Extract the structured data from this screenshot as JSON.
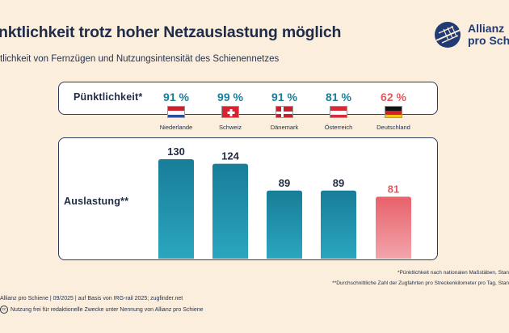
{
  "title": "nktlichkeit trotz hoher Netzauslastung möglich",
  "subtitle": "tlichkeit von Fernzügen und Nutzungsintensität des Schienennetzes",
  "logo": {
    "line1": "Allianz",
    "line2": "pro Schie",
    "icon": "rail-logo-icon"
  },
  "punctuality": {
    "label": "Pünktlichkeit*",
    "items": [
      {
        "country": "Niederlande",
        "value": "91 %",
        "flag": "netherlands-flag-icon"
      },
      {
        "country": "Schweiz",
        "value": "99 %",
        "flag": "switzerland-flag-icon"
      },
      {
        "country": "Dänemark",
        "value": "91 %",
        "flag": "denmark-flag-icon"
      },
      {
        "country": "Österreich",
        "value": "81 %",
        "flag": "austria-flag-icon"
      },
      {
        "country": "Deutschland",
        "value": "62 %",
        "flag": "germany-flag-icon"
      }
    ]
  },
  "utilization_label": "Auslastung**",
  "chart_data": {
    "type": "bar",
    "categories": [
      "Niederlande",
      "Schweiz",
      "Dänemark",
      "Österreich",
      "Deutschland"
    ],
    "values": [
      130,
      124,
      89,
      89,
      81
    ],
    "value_labels": [
      "130",
      "124",
      "89",
      "89",
      "81"
    ],
    "ylim": [
      0,
      150
    ],
    "grid": false,
    "colors": {
      "bar": "#1a7f9c",
      "bar_highlight": "#e8616b",
      "value_text": "#1f2a44",
      "highlight_text": "#e05a63"
    }
  },
  "footnotes": {
    "punctuality_note": "*Pünktlichkeit nach nationalen Maßstäben, Stan",
    "utilization_note": "**Durchschnittliche Zahl der Zugfahrten pro Streckenkilometer pro Tag, Stan"
  },
  "source": "Allianz pro Schiene | 09/2025 | auf Basis von IRG-rail 2025; zugfinder.net",
  "license": {
    "icon": "creative-commons-icon",
    "text": "Nutzung frei für redaktionelle Zwecke unter Nennung von Allianz pro Schiene"
  }
}
